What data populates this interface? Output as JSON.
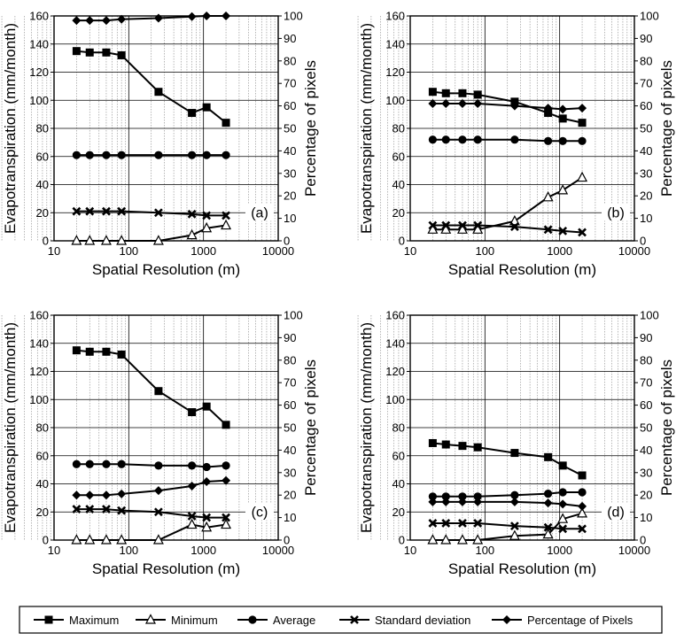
{
  "chart_data": [
    {
      "type": "line",
      "panel_label": "(a)",
      "xlabel": "Spatial Resolution (m)",
      "ylabel": "Evapotranspiration (mm/month)",
      "y2label": "Percentage of pixels",
      "xscale": "log",
      "xlim": [
        10,
        10000
      ],
      "ylim": [
        0,
        160
      ],
      "y2lim": [
        0,
        100
      ],
      "x": [
        20,
        30,
        50,
        80,
        250,
        700,
        1100,
        2000
      ],
      "series": [
        {
          "name": "Maximum",
          "axis": "left",
          "values": [
            135,
            134,
            134,
            132,
            106,
            91,
            95,
            84
          ]
        },
        {
          "name": "Minimum",
          "axis": "left",
          "values": [
            0,
            0,
            0,
            0,
            0,
            4,
            9,
            11
          ]
        },
        {
          "name": "Average",
          "axis": "left",
          "values": [
            61,
            61,
            61,
            61,
            61,
            61,
            61,
            61
          ]
        },
        {
          "name": "Standard deviation",
          "axis": "left",
          "values": [
            21,
            21,
            21,
            21,
            20,
            19,
            18,
            18
          ]
        },
        {
          "name": "Percentage of Pixels",
          "axis": "right",
          "values": [
            98,
            98,
            98,
            98.5,
            99,
            99.7,
            100,
            100
          ]
        }
      ]
    },
    {
      "type": "line",
      "panel_label": "(b)",
      "xlabel": "Spatial Resolution (m)",
      "ylabel": "Evapotranspiration (mm/month)",
      "y2label": "Percentage of pixels",
      "xscale": "log",
      "xlim": [
        10,
        10000
      ],
      "ylim": [
        0,
        160
      ],
      "y2lim": [
        0,
        100
      ],
      "x": [
        20,
        30,
        50,
        80,
        250,
        700,
        1100,
        2000
      ],
      "series": [
        {
          "name": "Maximum",
          "axis": "left",
          "values": [
            106,
            105,
            105,
            104,
            99,
            91,
            87,
            84
          ]
        },
        {
          "name": "Minimum",
          "axis": "left",
          "values": [
            8,
            8,
            8,
            8,
            14,
            31,
            36,
            45
          ]
        },
        {
          "name": "Average",
          "axis": "left",
          "values": [
            72,
            72,
            72,
            72,
            72,
            71,
            71,
            71
          ]
        },
        {
          "name": "Standard deviation",
          "axis": "left",
          "values": [
            11,
            11,
            11,
            11,
            10,
            8,
            7,
            6
          ]
        },
        {
          "name": "Percentage of Pixels",
          "axis": "right",
          "values": [
            61,
            61,
            61,
            61,
            60,
            59,
            58.5,
            59
          ]
        }
      ]
    },
    {
      "type": "line",
      "panel_label": "(c)",
      "xlabel": "Spatial Resolution (m)",
      "ylabel": "Evapotranspiration (mm/month)",
      "y2label": "Percentage of pixels",
      "xscale": "log",
      "xlim": [
        10,
        10000
      ],
      "ylim": [
        0,
        160
      ],
      "y2lim": [
        0,
        100
      ],
      "x": [
        20,
        30,
        50,
        80,
        250,
        700,
        1100,
        2000
      ],
      "series": [
        {
          "name": "Maximum",
          "axis": "left",
          "values": [
            135,
            134,
            134,
            132,
            106,
            91,
            95,
            82
          ]
        },
        {
          "name": "Minimum",
          "axis": "left",
          "values": [
            0,
            0,
            0,
            0,
            0,
            11,
            9,
            11
          ]
        },
        {
          "name": "Average",
          "axis": "left",
          "values": [
            54,
            54,
            54,
            54,
            53,
            53,
            52,
            53
          ]
        },
        {
          "name": "Standard deviation",
          "axis": "left",
          "values": [
            22,
            22,
            22,
            21,
            20,
            17,
            16,
            16
          ]
        },
        {
          "name": "Percentage of Pixels",
          "axis": "right",
          "values": [
            20,
            20,
            20,
            20.5,
            22,
            24,
            26,
            26.5
          ]
        }
      ]
    },
    {
      "type": "line",
      "panel_label": "(d)",
      "xlabel": "Spatial Resolution (m)",
      "ylabel": "Evapotranspiration (mm/month)",
      "y2label": "Percentage of pixels",
      "xscale": "log",
      "xlim": [
        10,
        10000
      ],
      "ylim": [
        0,
        160
      ],
      "y2lim": [
        0,
        100
      ],
      "x": [
        20,
        30,
        50,
        80,
        250,
        700,
        1100,
        2000
      ],
      "series": [
        {
          "name": "Maximum",
          "axis": "left",
          "values": [
            69,
            68,
            67,
            66,
            62,
            59,
            53,
            46
          ]
        },
        {
          "name": "Minimum",
          "axis": "left",
          "values": [
            0,
            0,
            0,
            0,
            3,
            4,
            15,
            19
          ]
        },
        {
          "name": "Average",
          "axis": "left",
          "values": [
            31,
            31,
            31,
            31,
            32,
            33,
            34,
            34
          ]
        },
        {
          "name": "Standard deviation",
          "axis": "left",
          "values": [
            12,
            12,
            12,
            12,
            10,
            9,
            8,
            8
          ]
        },
        {
          "name": "Percentage of Pixels",
          "axis": "right",
          "values": [
            17,
            17,
            17,
            17,
            17,
            16.5,
            16,
            15
          ]
        }
      ]
    }
  ],
  "ticks": {
    "x": [
      "10",
      "100",
      "1000",
      "10000"
    ],
    "y_left": [
      "0",
      "20",
      "40",
      "60",
      "80",
      "100",
      "120",
      "140",
      "160"
    ],
    "y_right": [
      "0",
      "10",
      "20",
      "30",
      "40",
      "50",
      "60",
      "70",
      "80",
      "90",
      "100"
    ]
  },
  "legend": {
    "items": [
      {
        "label": "Maximum",
        "marker": "square"
      },
      {
        "label": "Minimum",
        "marker": "triangle-open"
      },
      {
        "label": "Average",
        "marker": "circle"
      },
      {
        "label": "Standard deviation",
        "marker": "cross"
      },
      {
        "label": "Percentage of Pixels",
        "marker": "diamond"
      }
    ]
  },
  "colors": {
    "ink": "#000000",
    "background": "#ffffff",
    "major_grid": "#000000",
    "minor_grid": "#888888"
  }
}
